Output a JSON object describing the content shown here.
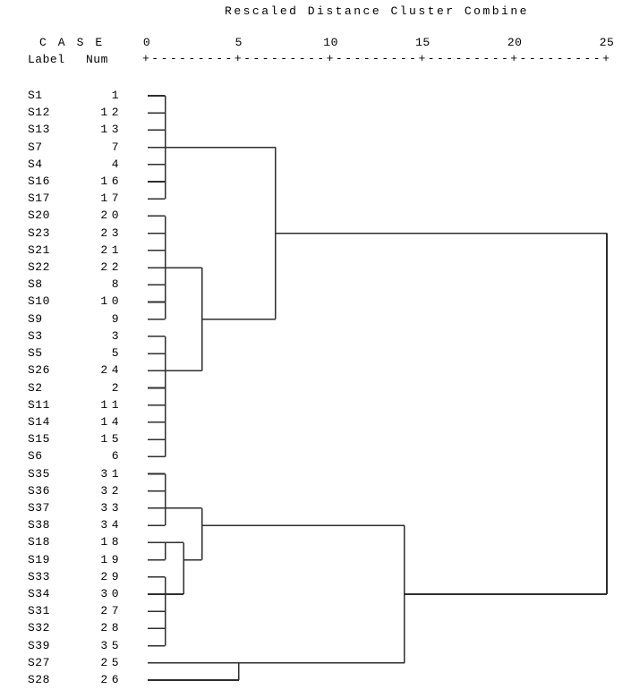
{
  "title": "Rescaled Distance Cluster Combine",
  "header": {
    "case_word": "C A S E",
    "label_col": "Label",
    "num_col": "Num",
    "ruler": "+---------+---------+---------+---------+---------+"
  },
  "colors": {
    "background": "#ffffff",
    "line": "#2e2e2e",
    "text": "#000000"
  },
  "chart_data": {
    "type": "dendrogram",
    "orientation": "horizontal",
    "distance_axis": {
      "label": "Rescaled Distance Cluster Combine",
      "min": 0,
      "max": 25,
      "ticks": [
        0,
        5,
        10,
        15,
        20,
        25
      ]
    },
    "leaf_columns": [
      "Label",
      "Num"
    ],
    "leaves": [
      {
        "label": "S1",
        "num": "1"
      },
      {
        "label": "S12",
        "num": "12"
      },
      {
        "label": "S13",
        "num": "13"
      },
      {
        "label": "S7",
        "num": "7"
      },
      {
        "label": "S4",
        "num": "4"
      },
      {
        "label": "S16",
        "num": "16"
      },
      {
        "label": "S17",
        "num": "17"
      },
      {
        "label": "S20",
        "num": "20"
      },
      {
        "label": "S23",
        "num": "23"
      },
      {
        "label": "S21",
        "num": "21"
      },
      {
        "label": "S22",
        "num": "22"
      },
      {
        "label": "S8",
        "num": "8"
      },
      {
        "label": "S10",
        "num": "10"
      },
      {
        "label": "S9",
        "num": "9"
      },
      {
        "label": "S3",
        "num": "3"
      },
      {
        "label": "S5",
        "num": "5"
      },
      {
        "label": "S26",
        "num": "24"
      },
      {
        "label": "S2",
        "num": "2"
      },
      {
        "label": "S11",
        "num": "11"
      },
      {
        "label": "S14",
        "num": "14"
      },
      {
        "label": "S15",
        "num": "15"
      },
      {
        "label": "S6",
        "num": "6"
      },
      {
        "label": "S35",
        "num": "31"
      },
      {
        "label": "S36",
        "num": "32"
      },
      {
        "label": "S37",
        "num": "33"
      },
      {
        "label": "S38",
        "num": "34"
      },
      {
        "label": "S18",
        "num": "18"
      },
      {
        "label": "S19",
        "num": "19"
      },
      {
        "label": "S33",
        "num": "29"
      },
      {
        "label": "S34",
        "num": "30"
      },
      {
        "label": "S31",
        "num": "27"
      },
      {
        "label": "S32",
        "num": "28"
      },
      {
        "label": "S39",
        "num": "35"
      },
      {
        "label": "S27",
        "num": "25"
      },
      {
        "label": "S28",
        "num": "26"
      }
    ],
    "nodes": [
      {
        "id": "A",
        "type": "leaf-cluster",
        "row_start": 1,
        "row_end": 7,
        "height": 1,
        "exit_row": 4
      },
      {
        "id": "B",
        "type": "leaf-cluster",
        "row_start": 8,
        "row_end": 14,
        "height": 1,
        "exit_row": 11
      },
      {
        "id": "C",
        "type": "leaf-cluster",
        "row_start": 15,
        "row_end": 22,
        "height": 1,
        "exit_row": 17
      },
      {
        "id": "BC",
        "type": "merge",
        "children": [
          "B",
          "C"
        ],
        "height": 3,
        "exit_row": 14
      },
      {
        "id": "ABC",
        "type": "merge",
        "children": [
          "A",
          "BC"
        ],
        "height": 7,
        "exit_row": 9
      },
      {
        "id": "D",
        "type": "leaf-cluster",
        "row_start": 23,
        "row_end": 26,
        "height": 1,
        "exit_row": 25
      },
      {
        "id": "E",
        "type": "leaf-cluster",
        "row_start": 27,
        "row_end": 28,
        "height": 1,
        "exit_row": 27
      },
      {
        "id": "F",
        "type": "leaf-cluster",
        "row_start": 29,
        "row_end": 33,
        "height": 1,
        "exit_row": 30
      },
      {
        "id": "EF",
        "type": "merge",
        "children": [
          "E",
          "F"
        ],
        "height": 2,
        "exit_row": 28
      },
      {
        "id": "DEF",
        "type": "merge",
        "children": [
          "D",
          "EF"
        ],
        "height": 3,
        "exit_row": 26
      },
      {
        "id": "G",
        "type": "leaf-cluster",
        "row_start": 34,
        "row_end": 35,
        "height": 5,
        "exit_row": 34
      },
      {
        "id": "BOTTOM",
        "type": "merge",
        "children": [
          "DEF",
          "G"
        ],
        "height": 14,
        "exit_row": 30
      },
      {
        "id": "ROOT",
        "type": "merge",
        "children": [
          "ABC",
          "BOTTOM"
        ],
        "height": 25,
        "exit_row": null
      }
    ]
  }
}
